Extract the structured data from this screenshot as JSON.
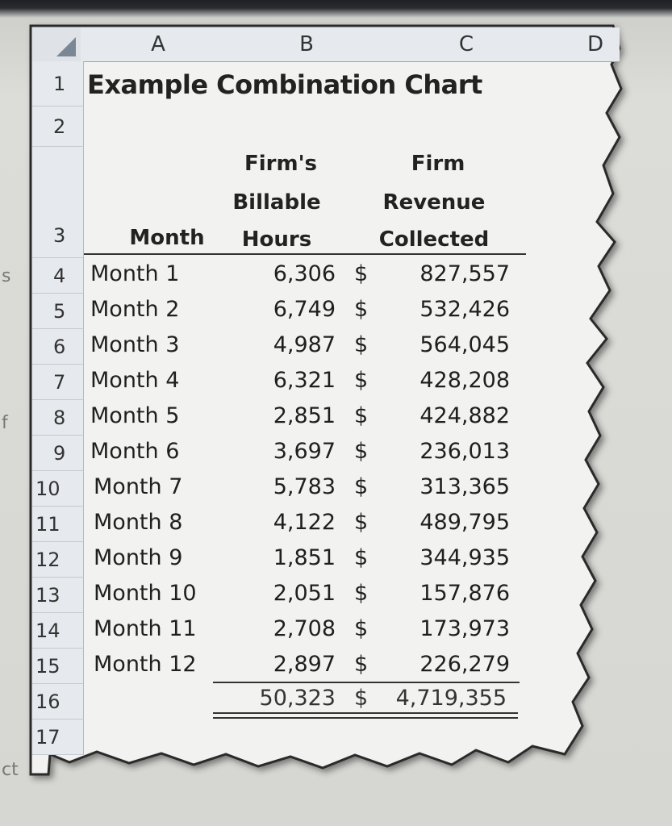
{
  "columns": [
    "A",
    "B",
    "C",
    "D"
  ],
  "title": "Example Combination Chart",
  "headers": {
    "month": "Month",
    "hours_l1": "Firm's",
    "hours_l2": "Billable",
    "hours_l3": "Hours",
    "rev_l1": "Firm",
    "rev_l2": "Revenue",
    "rev_l3": "Collected"
  },
  "row_numbers": [
    "1",
    "2",
    "3",
    "4",
    "5",
    "6",
    "7",
    "8",
    "9",
    "10",
    "11",
    "12",
    "13",
    "14",
    "15",
    "16",
    "17"
  ],
  "rows": [
    {
      "month": "Month 1",
      "hours": "6,306",
      "dollar": "$",
      "revenue": "827,557"
    },
    {
      "month": "Month 2",
      "hours": "6,749",
      "dollar": "$",
      "revenue": "532,426"
    },
    {
      "month": "Month 3",
      "hours": "4,987",
      "dollar": "$",
      "revenue": "564,045"
    },
    {
      "month": "Month 4",
      "hours": "6,321",
      "dollar": "$",
      "revenue": "428,208"
    },
    {
      "month": "Month 5",
      "hours": "2,851",
      "dollar": "$",
      "revenue": "424,882"
    },
    {
      "month": "Month 6",
      "hours": "3,697",
      "dollar": "$",
      "revenue": "236,013"
    },
    {
      "month": "Month 7",
      "hours": "5,783",
      "dollar": "$",
      "revenue": "313,365"
    },
    {
      "month": "Month 8",
      "hours": "4,122",
      "dollar": "$",
      "revenue": "489,795"
    },
    {
      "month": "Month 9",
      "hours": "1,851",
      "dollar": "$",
      "revenue": "344,935"
    },
    {
      "month": "Month 10",
      "hours": "2,051",
      "dollar": "$",
      "revenue": "157,876"
    },
    {
      "month": "Month 11",
      "hours": "2,708",
      "dollar": "$",
      "revenue": "173,973"
    },
    {
      "month": "Month 12",
      "hours": "2,897",
      "dollar": "$",
      "revenue": "226,279"
    }
  ],
  "totals": {
    "hours": "50,323",
    "dollar": "$",
    "revenue": "4,719,355"
  },
  "background_fragments": [
    "s",
    "f",
    "ct"
  ]
}
